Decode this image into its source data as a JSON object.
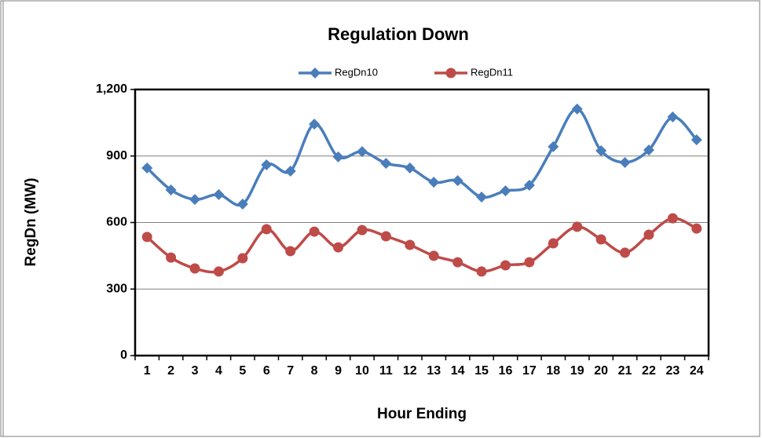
{
  "chart_data": {
    "type": "line",
    "title": "Regulation Down",
    "x_label": "Hour Ending",
    "y_label": "RegDn (MW)",
    "categories": [
      "1",
      "2",
      "3",
      "4",
      "5",
      "6",
      "7",
      "8",
      "9",
      "10",
      "11",
      "12",
      "13",
      "14",
      "15",
      "16",
      "17",
      "18",
      "19",
      "20",
      "21",
      "22",
      "23",
      "24"
    ],
    "series": [
      {
        "name": "RegDn10",
        "color": "#4a7ebb",
        "marker": "diamond",
        "values": [
          846,
          747,
          704,
          726,
          683,
          860,
          832,
          1044,
          896,
          920,
          867,
          846,
          782,
          789,
          715,
          743,
          768,
          942,
          1112,
          924,
          871,
          927,
          1076,
          973
        ]
      },
      {
        "name": "RegDn11",
        "color": "#be4b48",
        "marker": "circle",
        "values": [
          535,
          442,
          393,
          379,
          439,
          570,
          471,
          559,
          488,
          566,
          538,
          499,
          450,
          421,
          379,
          407,
          421,
          506,
          581,
          524,
          464,
          545,
          619,
          573
        ]
      }
    ],
    "ylim": [
      0,
      1200
    ],
    "yticks": [
      0,
      300,
      600,
      900,
      {
        "value": 1200,
        "label": "1,200"
      }
    ],
    "grid": true,
    "smooth": true,
    "legend": "top"
  }
}
